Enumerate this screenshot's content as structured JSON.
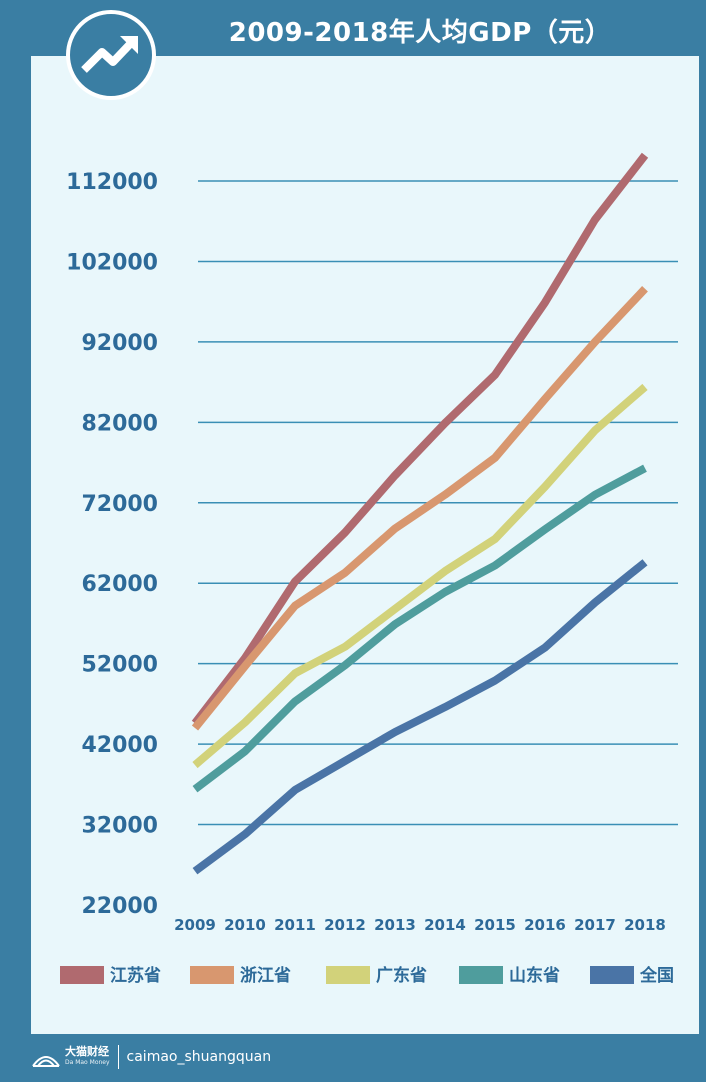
{
  "header": {
    "title": "2009-2018年人均GDP（元）",
    "icon": "trending-up-icon"
  },
  "footer": {
    "brand_name": "大猫财经",
    "brand_sub": "Da Mao Money",
    "handle": "caimao_shuangquan"
  },
  "colors": {
    "frame": "#3a7ea3",
    "panel": "#e9f7fb",
    "grid": "#3a8fb5",
    "tick_text": "#2d6a99"
  },
  "chart_data": {
    "type": "line",
    "title": "2009-2018年人均GDP（元）",
    "x": [
      "2009",
      "2010",
      "2011",
      "2012",
      "2013",
      "2014",
      "2015",
      "2016",
      "2017",
      "2018"
    ],
    "y_ticks": [
      "22000",
      "32000",
      "42000",
      "52000",
      "62000",
      "72000",
      "82000",
      "92000",
      "102000",
      "112000"
    ],
    "ylim": [
      22000,
      112000
    ],
    "grid": true,
    "legend_position": "bottom",
    "series": [
      {
        "name": "江苏省",
        "color": "#b06a6f",
        "values": [
          44600,
          52700,
          62200,
          68300,
          75400,
          81900,
          87900,
          96900,
          107200,
          115200
        ]
      },
      {
        "name": "浙江省",
        "color": "#d8976f",
        "values": [
          44000,
          51700,
          59200,
          63300,
          68800,
          73000,
          77600,
          84900,
          92000,
          98600
        ]
      },
      {
        "name": "广东省",
        "color": "#d2d27a",
        "values": [
          39400,
          44700,
          50800,
          54100,
          58800,
          63500,
          67500,
          74000,
          81000,
          86400
        ]
      },
      {
        "name": "山东省",
        "color": "#4f9d9d",
        "values": [
          36400,
          41100,
          47300,
          51800,
          56900,
          60900,
          64200,
          68700,
          73000,
          76300
        ]
      },
      {
        "name": "全国",
        "color": "#4a74a6",
        "values": [
          26200,
          30800,
          36300,
          39900,
          43500,
          46600,
          49900,
          54000,
          59600,
          64600
        ]
      }
    ]
  }
}
